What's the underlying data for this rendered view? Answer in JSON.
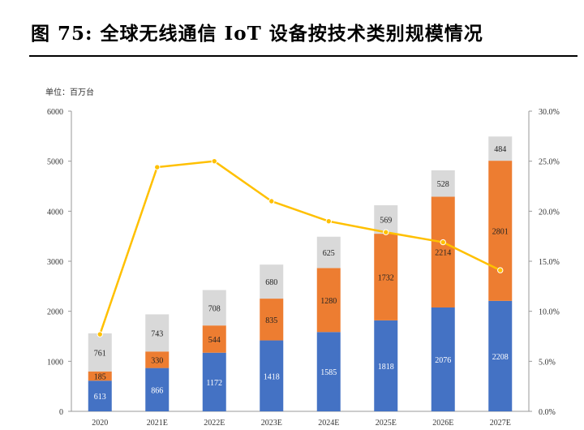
{
  "figure": {
    "title": "图 75: 全球无线通信 IoT 设备按技术类别规模情况"
  },
  "chart_data": {
    "type": "bar",
    "stacked": true,
    "unit_label": "单位：百万台",
    "categories": [
      "2020",
      "2021E",
      "2022E",
      "2023E",
      "2024E",
      "2025E",
      "2026E",
      "2027E"
    ],
    "series": [
      {
        "kind": "bar",
        "color": "#4472c4",
        "values": [
          613,
          866,
          1172,
          1418,
          1585,
          1818,
          2076,
          2208
        ]
      },
      {
        "kind": "bar",
        "color": "#ed7d31",
        "values": [
          185,
          330,
          544,
          835,
          1280,
          1732,
          2214,
          2801
        ]
      },
      {
        "kind": "bar",
        "color": "#d9d9d9",
        "values": [
          761,
          743,
          708,
          680,
          625,
          569,
          528,
          484
        ]
      },
      {
        "kind": "line",
        "axis": "right",
        "color": "#ffc000",
        "values": [
          7.7,
          24.4,
          25.0,
          21.0,
          19.0,
          17.9,
          16.9,
          14.1
        ]
      }
    ],
    "ylim": [
      0,
      6000
    ],
    "y_ticks": [
      0,
      1000,
      2000,
      3000,
      4000,
      5000,
      6000
    ],
    "y2lim": [
      0,
      30
    ],
    "y2_ticks": [
      "0.0%",
      "5.0%",
      "10.0%",
      "15.0%",
      "20.0%",
      "25.0%",
      "30.0%"
    ],
    "grid": false,
    "legend": "none"
  }
}
